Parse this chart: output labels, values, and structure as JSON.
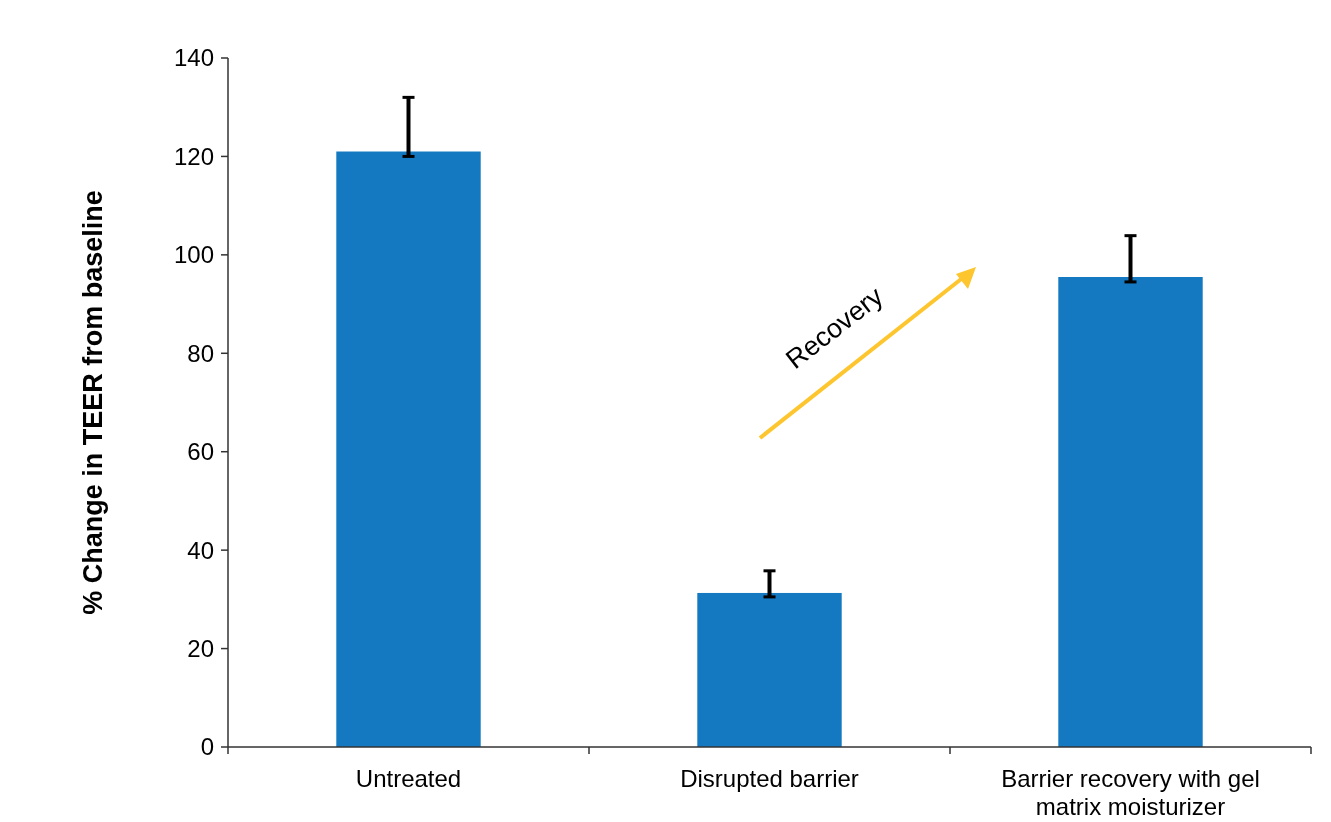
{
  "chart_data": {
    "type": "bar",
    "ylabel": "% Change in TEER from baseline",
    "categories": [
      "Untreated",
      "Disrupted barrier",
      "Barrier recovery with gel matrix moisturizer"
    ],
    "values": [
      121,
      31.3,
      95.5
    ],
    "errors": [
      [
        120,
        132
      ],
      [
        30.5,
        35.8
      ],
      [
        94.5,
        103.9
      ]
    ],
    "color": "#1479c1",
    "ylim": [
      0,
      140
    ],
    "yticks": [
      0,
      20,
      40,
      60,
      80,
      100,
      120,
      140
    ],
    "grid": false,
    "annotations": [
      "Recovery"
    ]
  }
}
